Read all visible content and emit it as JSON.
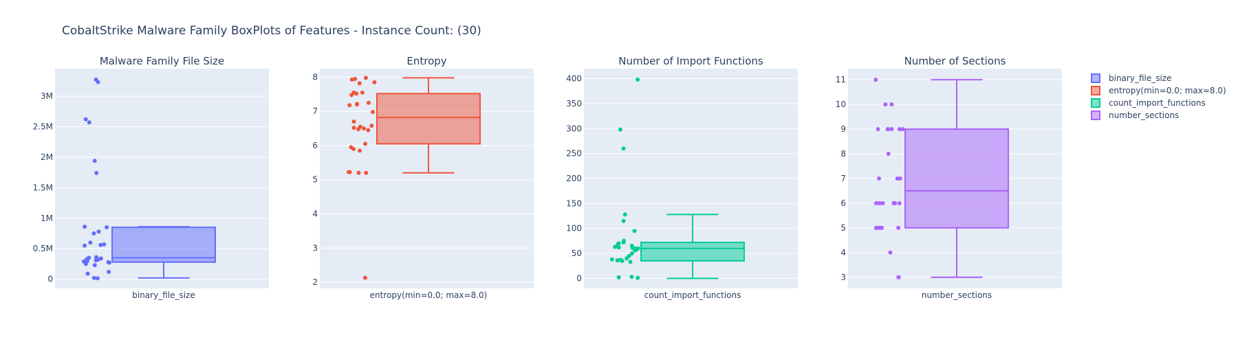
{
  "title": "CobaltStrike Malware Family BoxPlots of Features - Instance Count: (30)",
  "colors": {
    "binary_file_size": "#636efa",
    "entropy": "#ef553b",
    "count_import_functions": "#00cc96",
    "number_sections": "#ab63fa",
    "plot_bg": "#e5ecf6",
    "grid": "#ffffff",
    "text": "#2a3f5f"
  },
  "legend": {
    "placement": "top-right",
    "items": [
      "binary_file_size",
      "entropy(min=0.0; max=8.0)",
      "count_import_functions",
      "number_sections"
    ]
  },
  "chart_data": [
    {
      "type": "box",
      "title": "Malware Family File Size",
      "category": "binary_file_size",
      "color_key": "binary_file_size",
      "ylim": [
        -150000,
        3450000
      ],
      "ticks": [
        0,
        500000,
        1000000,
        1500000,
        2000000,
        2500000,
        3000000
      ],
      "tick_labels": [
        "0",
        "0.5M",
        "1M",
        "1.5M",
        "2M",
        "2.5M",
        "3M"
      ],
      "box": {
        "min": 20000,
        "q1": 280000,
        "median": 350000,
        "q3": 850000,
        "max": 860000
      },
      "points": [
        3270000,
        3230000,
        2620000,
        2570000,
        1940000,
        1740000,
        860000,
        850000,
        780000,
        750000,
        600000,
        570000,
        560000,
        550000,
        360000,
        350000,
        340000,
        330000,
        320000,
        310000,
        300000,
        290000,
        280000,
        270000,
        250000,
        230000,
        120000,
        90000,
        20000,
        15000
      ]
    },
    {
      "type": "box",
      "title": "Entropy",
      "category": "entropy(min=0.0; max=8.0)",
      "color_key": "entropy",
      "ylim": [
        1.82,
        8.25
      ],
      "ticks": [
        2,
        3,
        4,
        5,
        6,
        7,
        8
      ],
      "tick_labels": [
        "2",
        "3",
        "4",
        "5",
        "6",
        "7",
        "8"
      ],
      "box": {
        "min": 5.2,
        "q1": 6.05,
        "median": 6.82,
        "q3": 7.52,
        "max": 7.98
      },
      "points": [
        7.98,
        7.95,
        7.93,
        7.85,
        7.82,
        7.55,
        7.55,
        7.52,
        7.48,
        7.25,
        7.22,
        7.2,
        7.18,
        6.98,
        6.7,
        6.58,
        6.55,
        6.52,
        6.5,
        6.48,
        6.45,
        6.05,
        5.95,
        5.9,
        5.85,
        5.22,
        5.22,
        5.2,
        5.2,
        2.13
      ]
    },
    {
      "type": "box",
      "title": "Number of Import Functions",
      "category": "count_import_functions",
      "color_key": "count_import_functions",
      "ylim": [
        -20,
        420
      ],
      "ticks": [
        0,
        50,
        100,
        150,
        200,
        250,
        300,
        350,
        400
      ],
      "tick_labels": [
        "0",
        "50",
        "100",
        "150",
        "200",
        "250",
        "300",
        "350",
        "400"
      ],
      "box": {
        "min": 0,
        "q1": 35,
        "median": 60,
        "q3": 72,
        "max": 128
      },
      "points": [
        398,
        298,
        260,
        128,
        115,
        95,
        75,
        72,
        70,
        68,
        65,
        63,
        62,
        61,
        60,
        60,
        58,
        56,
        50,
        45,
        40,
        38,
        37,
        36,
        36,
        35,
        33,
        3,
        2,
        1
      ]
    },
    {
      "type": "box",
      "title": "Number of Sections",
      "category": "number_sections",
      "color_key": "number_sections",
      "ylim": [
        2.55,
        11.45
      ],
      "ticks": [
        3,
        4,
        5,
        6,
        7,
        8,
        9,
        10,
        11
      ],
      "tick_labels": [
        "3",
        "4",
        "5",
        "6",
        "7",
        "8",
        "9",
        "10",
        "11"
      ],
      "box": {
        "min": 3,
        "q1": 5,
        "median": 6.5,
        "q3": 9,
        "max": 11
      },
      "points": [
        11,
        10,
        10,
        9,
        9,
        9,
        9,
        9,
        9,
        8,
        7,
        7,
        7,
        6,
        6,
        6,
        6,
        6,
        6,
        6,
        5,
        5,
        5,
        5,
        5,
        5,
        4,
        3,
        3,
        6
      ]
    }
  ]
}
